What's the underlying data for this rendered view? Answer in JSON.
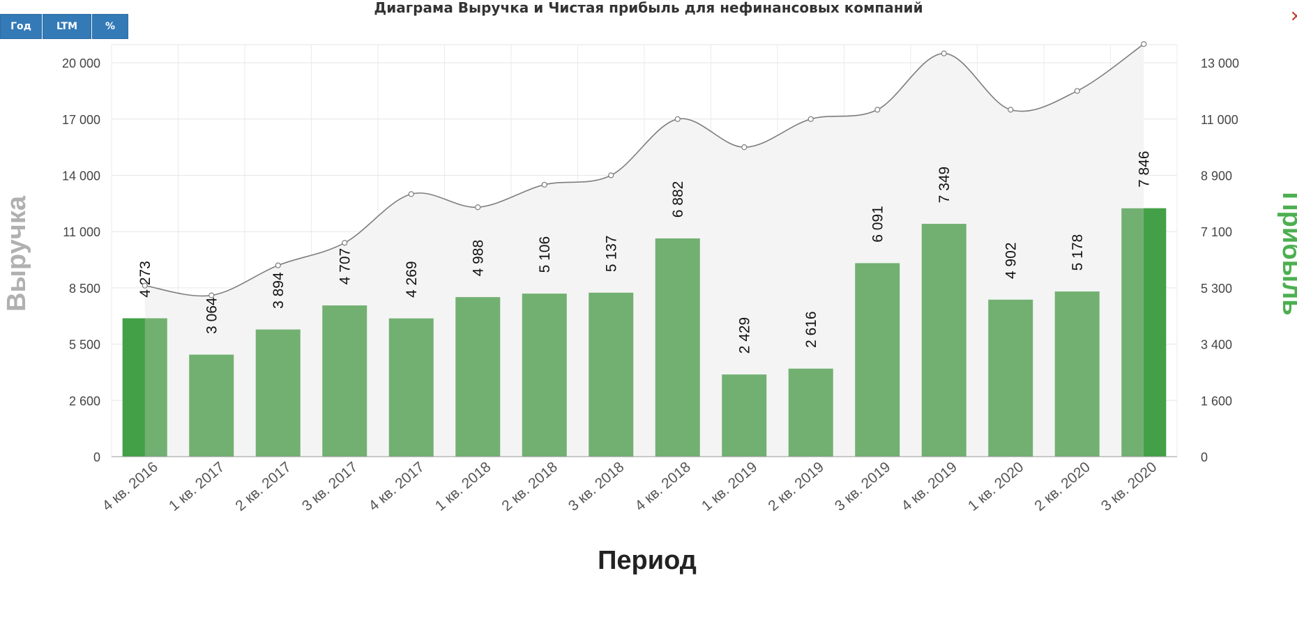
{
  "toolbar": {
    "year_label": "Год",
    "ltm_label": "LTM",
    "percent_label": "%",
    "close_icon": "close-icon"
  },
  "colors": {
    "bar": "#72b072",
    "bar_highlight": "#43a047",
    "line": "#7d7d7d",
    "area": "#f4f4f4",
    "button": "#337ab7",
    "profit_axis_title": "#4caf50",
    "revenue_axis_title": "#b0b0b0"
  },
  "chart_data": {
    "type": "bar",
    "title": "Диаграма Выручка и Чистая прибыль для нефинансовых компаний",
    "xlabel": "Период",
    "ylabel_left": "Выручка",
    "ylabel_right": "Прибыль",
    "categories": [
      "4 кв. 2016",
      "1 кв. 2017",
      "2 кв. 2017",
      "3 кв. 2017",
      "4 кв. 2017",
      "1 кв. 2018",
      "2 кв. 2018",
      "3 кв. 2018",
      "4 кв. 2018",
      "1 кв. 2019",
      "2 кв. 2019",
      "3 кв. 2019",
      "4 кв. 2019",
      "1 кв. 2020",
      "2 кв. 2020",
      "3 кв. 2020"
    ],
    "left_axis": {
      "ticks": [
        0,
        2600,
        5500,
        8500,
        11000,
        14000,
        17000,
        20000
      ],
      "tick_labels": [
        "0",
        "2 600",
        "5 500",
        "8 500",
        "11 000",
        "14 000",
        "17 000",
        "20 000"
      ]
    },
    "right_axis": {
      "ticks": [
        0,
        1600,
        3400,
        5300,
        7100,
        8900,
        11000,
        13000
      ],
      "tick_labels": [
        "0",
        "1 600",
        "3 400",
        "5 300",
        "7 100",
        "8 900",
        "11 000",
        "13 000"
      ]
    },
    "grid": true,
    "series": [
      {
        "name": "Прибыль",
        "type": "bar",
        "axis": "right",
        "values": [
          4273,
          3064,
          3894,
          4707,
          4269,
          4988,
          5106,
          5137,
          6882,
          2429,
          2616,
          6091,
          7349,
          4902,
          5178,
          7846
        ],
        "labels": [
          "4 273",
          "3 064",
          "3 894",
          "4 707",
          "4 269",
          "4 988",
          "5 106",
          "5 137",
          "6 882",
          "2 429",
          "2 616",
          "6 091",
          "7 349",
          "4 902",
          "5 178",
          "7 846"
        ]
      },
      {
        "name": "Выручка",
        "type": "area",
        "axis": "left",
        "values": [
          8600,
          8100,
          9500,
          10500,
          13000,
          12300,
          13500,
          14000,
          17000,
          15500,
          17000,
          17500,
          20500,
          17500,
          18500,
          21000
        ]
      }
    ],
    "highlighted_bars": [
      0,
      15
    ]
  }
}
